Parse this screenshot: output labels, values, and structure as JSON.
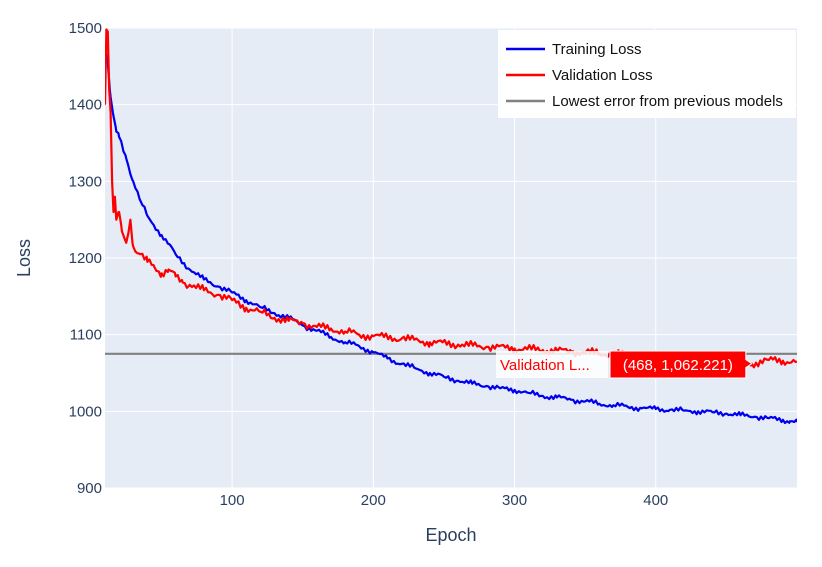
{
  "chart_data": {
    "type": "line",
    "xlabel": "Epoch",
    "ylabel": "Loss",
    "xlim": [
      10,
      500
    ],
    "ylim": [
      900,
      1500
    ],
    "x_ticks": [
      100,
      200,
      300,
      400
    ],
    "y_ticks": [
      900,
      1000,
      1100,
      1200,
      1300,
      1400,
      1500
    ],
    "grid": true,
    "legend_position": "top-right",
    "series": [
      {
        "name": "Training Loss",
        "color": "#0000ee",
        "x": [
          10,
          12,
          14,
          16,
          18,
          20,
          25,
          30,
          35,
          40,
          50,
          60,
          70,
          80,
          90,
          100,
          110,
          120,
          130,
          140,
          150,
          160,
          170,
          180,
          190,
          200,
          210,
          220,
          230,
          240,
          250,
          260,
          270,
          280,
          290,
          300,
          310,
          320,
          330,
          340,
          350,
          360,
          370,
          380,
          390,
          400,
          410,
          420,
          430,
          440,
          450,
          460,
          470,
          480,
          490,
          495,
          500
        ],
        "y": [
          1478,
          1455,
          1410,
          1385,
          1365,
          1358,
          1330,
          1300,
          1275,
          1255,
          1230,
          1205,
          1185,
          1172,
          1163,
          1155,
          1145,
          1136,
          1128,
          1122,
          1112,
          1105,
          1097,
          1090,
          1085,
          1077,
          1069,
          1062,
          1056,
          1050,
          1045,
          1040,
          1036,
          1033,
          1030,
          1028,
          1024,
          1020,
          1018,
          1015,
          1013,
          1010,
          1008,
          1006,
          1004,
          1003,
          1002,
          1001,
          1000,
          999,
          997,
          995,
          993,
          991,
          989,
          987,
          986
        ]
      },
      {
        "name": "Validation Loss",
        "color": "#ff0000",
        "x": [
          10,
          11,
          12,
          13,
          14,
          15,
          16,
          17,
          18,
          20,
          22,
          25,
          28,
          30,
          35,
          40,
          45,
          50,
          55,
          60,
          65,
          70,
          80,
          90,
          100,
          110,
          120,
          130,
          140,
          150,
          160,
          170,
          180,
          190,
          200,
          220,
          240,
          260,
          280,
          300,
          320,
          340,
          360,
          380,
          400,
          420,
          440,
          460,
          468,
          480,
          490,
          500
        ],
        "y": [
          1400,
          1498,
          1495,
          1420,
          1390,
          1300,
          1260,
          1280,
          1250,
          1260,
          1235,
          1220,
          1250,
          1215,
          1205,
          1195,
          1188,
          1180,
          1185,
          1176,
          1168,
          1165,
          1158,
          1152,
          1145,
          1135,
          1130,
          1122,
          1118,
          1115,
          1110,
          1108,
          1104,
          1100,
          1098,
          1095,
          1090,
          1087,
          1084,
          1082,
          1080,
          1078,
          1076,
          1074,
          1072,
          1070,
          1068,
          1066,
          1062.221,
          1067,
          1066,
          1065
        ]
      },
      {
        "name": "Lowest error from previous models",
        "color": "#808080",
        "x": [
          10,
          500
        ],
        "y": [
          1075,
          1075
        ]
      }
    ],
    "hover": {
      "series_label": "Validation L...",
      "value_label": "(468, 1,062.221)",
      "x": 468,
      "y": 1062.221
    }
  }
}
